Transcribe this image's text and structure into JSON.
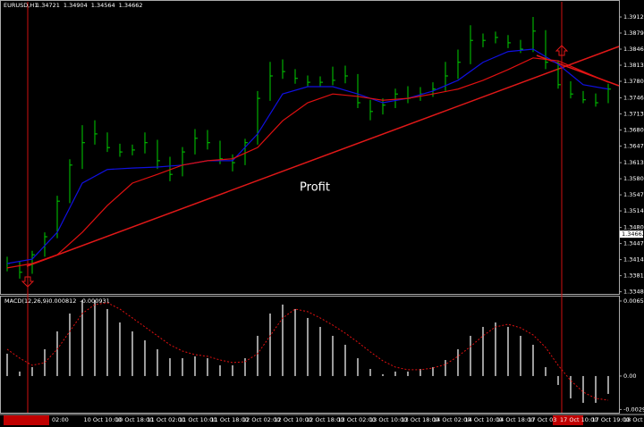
{
  "chart_data": [
    {
      "type": "ohlc",
      "title": "EURUSD,H1",
      "header_values": [
        1.34721,
        1.34904,
        1.34564,
        1.34662
      ],
      "annotation": "Profit",
      "high": [
        1.342,
        1.341,
        1.3432,
        1.347,
        1.3545,
        1.362,
        1.369,
        1.37,
        1.3675,
        1.3652,
        1.365,
        1.3675,
        1.366,
        1.3625,
        1.3645,
        1.3682,
        1.368,
        1.3658,
        1.363,
        1.3662,
        1.376,
        1.382,
        1.3825,
        1.3805,
        1.3792,
        1.379,
        1.381,
        1.3812,
        1.3795,
        1.3742,
        1.3745,
        1.3765,
        1.377,
        1.3768,
        1.3778,
        1.382,
        1.3845,
        1.3895,
        1.3878,
        1.3882,
        1.3875,
        1.3865,
        1.3912,
        1.3885,
        1.3822,
        1.378,
        1.376,
        1.3755,
        1.3775
      ],
      "low": [
        1.339,
        1.3375,
        1.3385,
        1.342,
        1.3458,
        1.353,
        1.36,
        1.365,
        1.3635,
        1.3625,
        1.3628,
        1.3632,
        1.36,
        1.3575,
        1.3585,
        1.363,
        1.364,
        1.361,
        1.3595,
        1.3608,
        1.365,
        1.374,
        1.3785,
        1.3775,
        1.377,
        1.3768,
        1.3772,
        1.3776,
        1.3725,
        1.37,
        1.3712,
        1.3725,
        1.3735,
        1.374,
        1.3748,
        1.376,
        1.3785,
        1.3815,
        1.385,
        1.3858,
        1.3848,
        1.3838,
        1.384,
        1.3805,
        1.3765,
        1.3745,
        1.3735,
        1.3728,
        1.3735
      ],
      "close": [
        1.3406,
        1.3388,
        1.3424,
        1.3461,
        1.3534,
        1.3608,
        1.3654,
        1.3672,
        1.3644,
        1.3635,
        1.3639,
        1.3654,
        1.3617,
        1.3589,
        1.3635,
        1.3663,
        1.3654,
        1.3621,
        1.3613,
        1.3654,
        1.3745,
        1.3791,
        1.38,
        1.3786,
        1.3778,
        1.3778,
        1.3782,
        1.3791,
        1.3736,
        1.3718,
        1.3731,
        1.3754,
        1.3745,
        1.3754,
        1.3764,
        1.3791,
        1.3819,
        1.3864,
        1.3864,
        1.387,
        1.3859,
        1.3846,
        1.3883,
        1.3819,
        1.3773,
        1.3754,
        1.3742,
        1.3736,
        1.3764
      ],
      "bar_color": "#00d000",
      "series": [
        {
          "color": "#1010e0",
          "x": [
            0,
            2,
            4,
            6,
            8,
            10,
            12,
            14,
            16,
            18,
            20,
            22,
            24,
            26,
            28,
            30,
            32,
            34,
            36,
            38,
            40,
            42,
            44,
            46,
            48
          ],
          "values": [
            1.3406,
            1.3415,
            1.347,
            1.3571,
            1.3599,
            1.3602,
            1.3604,
            1.3608,
            1.3617,
            1.3617,
            1.3672,
            1.3754,
            1.3769,
            1.3769,
            1.3754,
            1.3736,
            1.3745,
            1.376,
            1.3782,
            1.3819,
            1.3841,
            1.3846,
            1.3815,
            1.3773,
            1.3764
          ]
        },
        {
          "color": "#e01010",
          "x": [
            0,
            2,
            4,
            6,
            8,
            10,
            12,
            14,
            16,
            18,
            20,
            22,
            24,
            26,
            28,
            30,
            32,
            34,
            36,
            38,
            40,
            42,
            44,
            46,
            48
          ],
          "values": [
            1.3397,
            1.3406,
            1.3424,
            1.347,
            1.3525,
            1.3571,
            1.3589,
            1.3608,
            1.3617,
            1.3621,
            1.3644,
            1.3699,
            1.3736,
            1.3754,
            1.3749,
            1.3741,
            1.3745,
            1.3754,
            1.3764,
            1.3782,
            1.3804,
            1.3828,
            1.3822,
            1.38,
            1.3778
          ]
        }
      ],
      "ylim": [
        1.33418,
        1.39322
      ],
      "yticks": [
        {
          "value": 1.3912,
          "label": "1.39120"
        },
        {
          "value": 1.3879,
          "label": "1.38790"
        },
        {
          "value": 1.3846,
          "label": "1.38460"
        },
        {
          "value": 1.3813,
          "label": "1.38130"
        },
        {
          "value": 1.378,
          "label": "1.37800"
        },
        {
          "value": 1.3746,
          "label": "1.37460"
        },
        {
          "value": 1.3713,
          "label": "1.37130"
        },
        {
          "value": 1.368,
          "label": "1.36800"
        },
        {
          "value": 1.3647,
          "label": "1.36470"
        },
        {
          "value": 1.3613,
          "label": "1.36130"
        },
        {
          "value": 1.358,
          "label": "1.35800"
        },
        {
          "value": 1.3547,
          "label": "1.35470"
        },
        {
          "value": 1.3514,
          "label": "1.35140"
        },
        {
          "value": 1.348,
          "label": "1.34800"
        },
        {
          "value": 1.3447,
          "label": "1.34470"
        },
        {
          "value": 1.3414,
          "label": "1.34140"
        },
        {
          "value": 1.3381,
          "label": "1.33810"
        },
        {
          "value": 1.3348,
          "label": "1.33480"
        }
      ],
      "time_labels": [
        "02:00",
        "10 Oct 10:00",
        "10 Oct 18:00",
        "11 Oct 02:00",
        "11 Oct 10:00",
        "11 Oct 18:00",
        "12 Oct 02:00",
        "12 Oct 10:00",
        "12 Oct 18:00",
        "13 Oct 02:00",
        "13 Oct 10:00",
        "13 Oct 18:00",
        "14 Oct 02:00",
        "14 Oct 10:00",
        "14 Oct 18:00",
        "17 Oct 03",
        "17 Oct 10:00",
        "17 Oct 19:00",
        "18 Oct 03:00"
      ]
    },
    {
      "type": "macd",
      "title": "MACD(12,26,9)",
      "header_values": [
        -0.000812,
        -0.000931
      ],
      "series": [
        {
          "color": "#d0d0d0",
          "values": [
            0.00195,
            0.00039,
            0.00078,
            0.00234,
            0.0039,
            0.00546,
            0.00663,
            0.00663,
            0.00585,
            0.00468,
            0.0039,
            0.00312,
            0.00234,
            0.00156,
            0.00156,
            0.00172,
            0.00156,
            0.00094,
            0.00094,
            0.00156,
            0.00351,
            0.00546,
            0.00624,
            0.00585,
            0.00507,
            0.00429,
            0.00351,
            0.00273,
            0.00156,
            0.00062,
            0.00016,
            0.00039,
            0.00039,
            0.00062,
            0.00078,
            0.0014,
            0.00234,
            0.00351,
            0.00429,
            0.00468,
            0.00429,
            0.00351,
            0.00273,
            0.00078,
            -0.00078,
            -0.00195,
            -0.00234,
            -0.00234,
            -0.00156
          ]
        },
        {
          "color": "#e01010",
          "values": [
            0.00234,
            0.00156,
            0.00094,
            0.00117,
            0.00234,
            0.0039,
            0.00546,
            0.00624,
            0.0064,
            0.00585,
            0.00507,
            0.00429,
            0.00351,
            0.00273,
            0.00218,
            0.00187,
            0.00172,
            0.0014,
            0.00117,
            0.00125,
            0.00195,
            0.00351,
            0.00507,
            0.00585,
            0.00562,
            0.00507,
            0.00445,
            0.00374,
            0.00296,
            0.00211,
            0.00133,
            0.00078,
            0.00055,
            0.00055,
            0.0007,
            0.00101,
            0.00172,
            0.00257,
            0.00351,
            0.00429,
            0.00452,
            0.00421,
            0.00359,
            0.0025,
            0.00094,
            -0.00039,
            -0.0014,
            -0.00195,
            -0.00211
          ]
        }
      ],
      "ylim": [
        -0.00328,
        0.00686
      ],
      "yticks": [
        {
          "value": 0.00655,
          "label": "0.00655"
        },
        {
          "value": 0,
          "label": "0.00"
        },
        {
          "value": -0.00292,
          "label": "-0.00292"
        }
      ]
    }
  ]
}
